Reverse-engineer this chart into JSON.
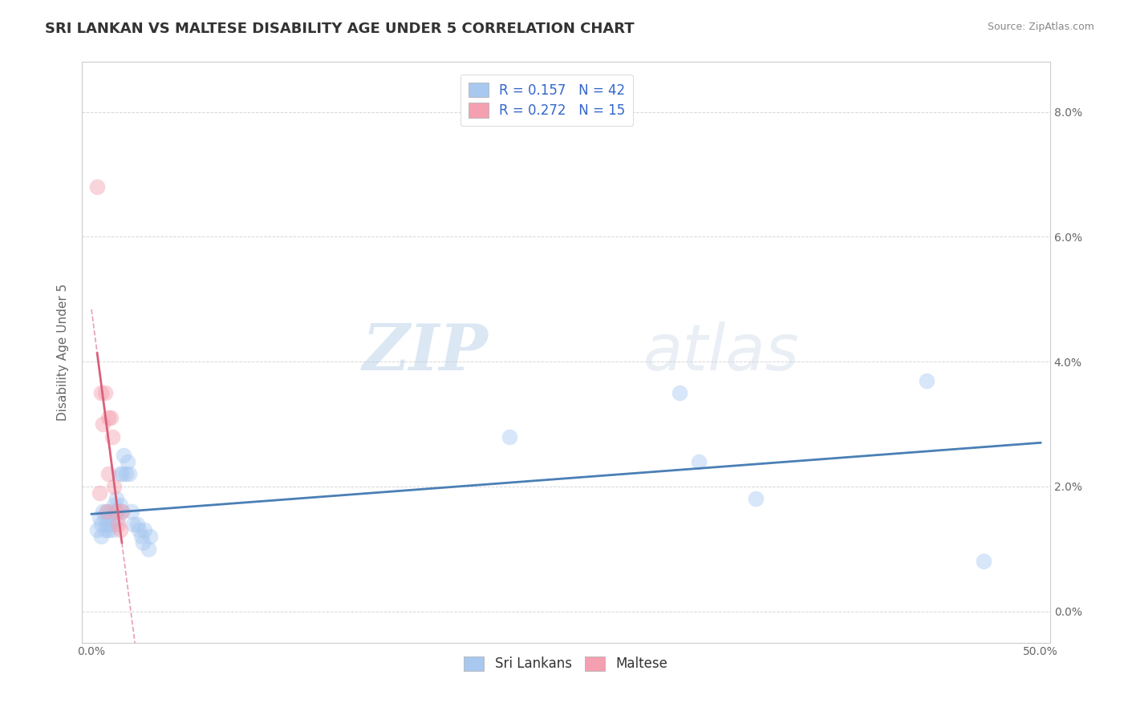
{
  "title": "SRI LANKAN VS MALTESE DISABILITY AGE UNDER 5 CORRELATION CHART",
  "source": "Source: ZipAtlas.com",
  "ylabel": "Disability Age Under 5",
  "xlim": [
    -0.005,
    0.505
  ],
  "ylim": [
    -0.005,
    0.088
  ],
  "ytick_vals": [
    0.0,
    0.02,
    0.04,
    0.06,
    0.08
  ],
  "ytick_labels": [
    "0.0%",
    "2.0%",
    "4.0%",
    "6.0%",
    "8.0%"
  ],
  "xtick_vals": [
    0.0,
    0.1,
    0.2,
    0.3,
    0.4,
    0.5
  ],
  "xtick_labels": [
    "0.0%",
    "",
    "",
    "",
    "",
    "50.0%"
  ],
  "sri_lankan_R": 0.157,
  "sri_lankan_N": 42,
  "maltese_R": 0.272,
  "maltese_N": 15,
  "sri_lankan_color": "#a8c8f0",
  "maltese_color": "#f4a0b0",
  "sri_lankan_line_color": "#4a7fb5",
  "maltese_line_color": "#d9607a",
  "maltese_dash_color": "#e8a0b0",
  "background_color": "#ffffff",
  "grid_color": "#cccccc",
  "watermark_zip": "ZIP",
  "watermark_atlas": "atlas",
  "legend_label_sri": "Sri Lankans",
  "legend_label_mal": "Maltese",
  "title_fontsize": 13,
  "axis_label_fontsize": 11,
  "tick_fontsize": 10,
  "legend_fontsize": 12,
  "marker_size": 200,
  "marker_alpha": 0.45,
  "title_color": "#333333",
  "sri_lankans_x": [
    0.003,
    0.004,
    0.005,
    0.005,
    0.006,
    0.007,
    0.007,
    0.008,
    0.008,
    0.009,
    0.009,
    0.01,
    0.01,
    0.011,
    0.011,
    0.012,
    0.013,
    0.013,
    0.014,
    0.015,
    0.015,
    0.016,
    0.016,
    0.017,
    0.018,
    0.019,
    0.02,
    0.021,
    0.022,
    0.024,
    0.025,
    0.026,
    0.027,
    0.028,
    0.03,
    0.031,
    0.22,
    0.31,
    0.32,
    0.35,
    0.44,
    0.47
  ],
  "sri_lankans_y": [
    0.013,
    0.015,
    0.012,
    0.014,
    0.016,
    0.013,
    0.015,
    0.014,
    0.016,
    0.013,
    0.015,
    0.014,
    0.016,
    0.013,
    0.015,
    0.017,
    0.016,
    0.018,
    0.015,
    0.017,
    0.022,
    0.016,
    0.022,
    0.025,
    0.022,
    0.024,
    0.022,
    0.016,
    0.014,
    0.014,
    0.013,
    0.012,
    0.011,
    0.013,
    0.01,
    0.012,
    0.028,
    0.035,
    0.024,
    0.018,
    0.037,
    0.008
  ],
  "maltese_x": [
    0.003,
    0.004,
    0.005,
    0.006,
    0.007,
    0.008,
    0.009,
    0.009,
    0.01,
    0.011,
    0.012,
    0.013,
    0.014,
    0.015,
    0.016
  ],
  "maltese_y": [
    0.068,
    0.019,
    0.035,
    0.03,
    0.035,
    0.016,
    0.031,
    0.022,
    0.031,
    0.028,
    0.02,
    0.016,
    0.014,
    0.013,
    0.016
  ]
}
